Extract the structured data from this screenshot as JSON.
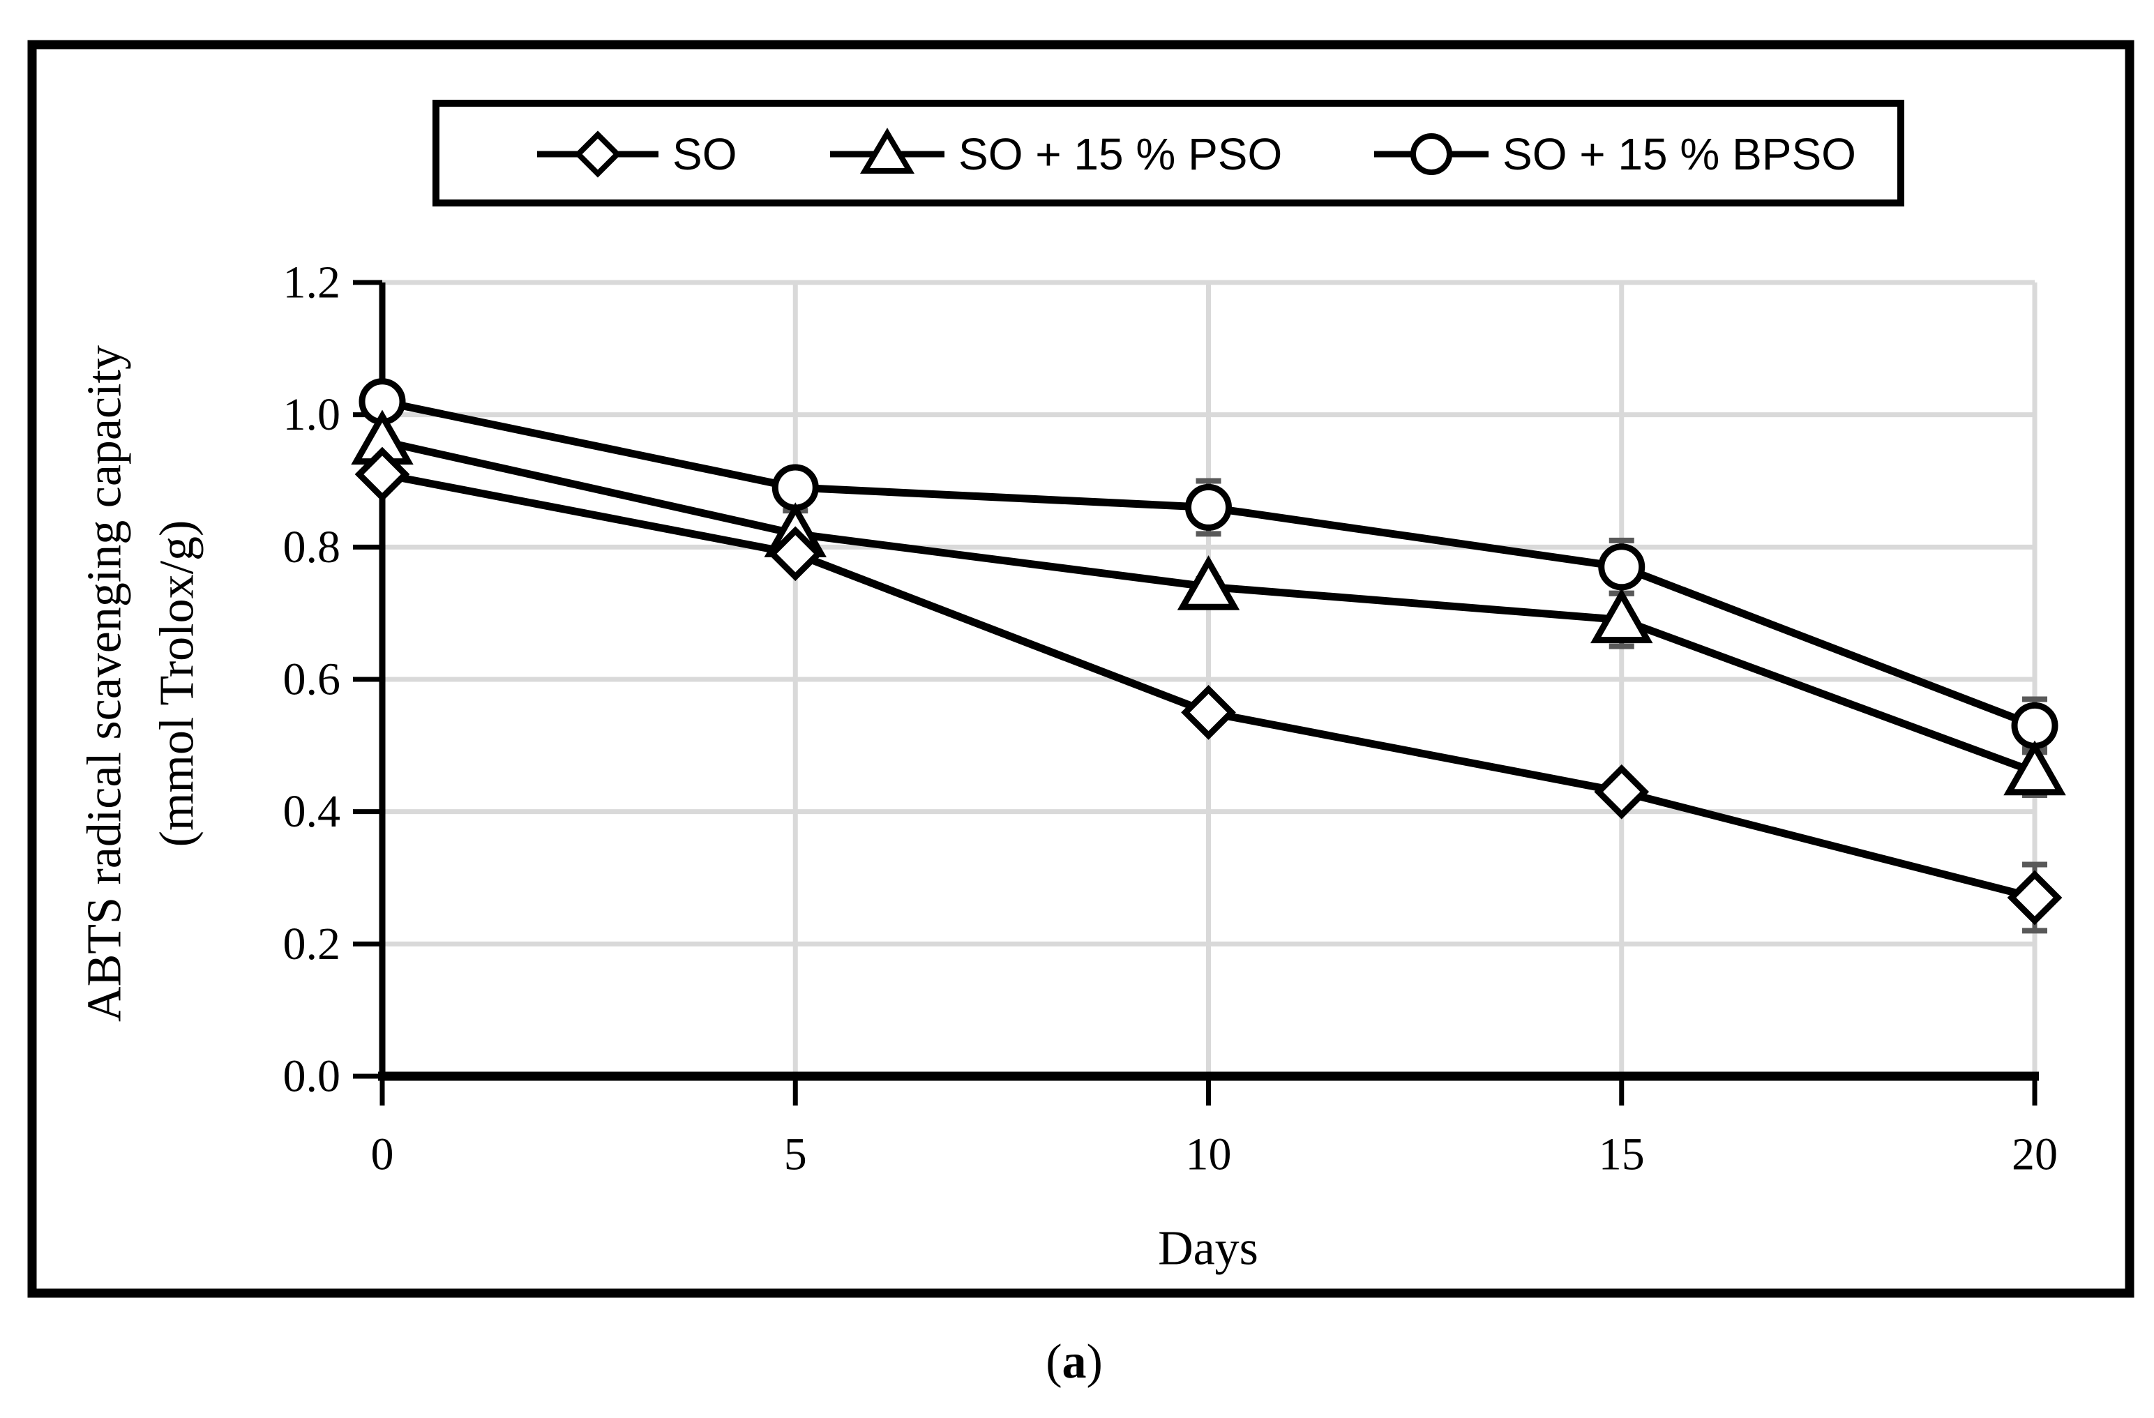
{
  "figure": {
    "caption_open": "(",
    "caption_letter": "a",
    "caption_close": ")"
  },
  "chart_data": {
    "type": "line",
    "title": "",
    "xlabel": "Days",
    "ylabel_line1": "ABTS radical scavenging capacity",
    "ylabel_line2": "(mmol Trolox/g)",
    "x": [
      0,
      5,
      10,
      15,
      20
    ],
    "x_tick_labels": [
      "0",
      "5",
      "10",
      "15",
      "20"
    ],
    "y_tick_labels": [
      "0.0",
      "0.2",
      "0.4",
      "0.6",
      "0.8",
      "1.0",
      "1.2"
    ],
    "xlim": [
      0,
      20
    ],
    "ylim": [
      0,
      1.2
    ],
    "grid": true,
    "legend_position": "top",
    "series": [
      {
        "name": "SO",
        "marker": "diamond",
        "values": [
          0.91,
          0.79,
          0.55,
          0.43,
          0.27
        ],
        "errors": [
          0,
          0,
          0,
          0,
          0.05
        ]
      },
      {
        "name": "SO + 15 % PSO",
        "marker": "triangle",
        "values": [
          0.96,
          0.82,
          0.74,
          0.69,
          0.46
        ],
        "errors": [
          0,
          0.035,
          0.012,
          0.04,
          0.035
        ]
      },
      {
        "name": "SO + 15 % BPSO",
        "marker": "circle",
        "values": [
          1.02,
          0.89,
          0.86,
          0.77,
          0.53
        ],
        "errors": [
          0,
          0,
          0.04,
          0.04,
          0.04
        ]
      }
    ],
    "colors": {
      "line": "#000000",
      "grid": "#d9d9d9",
      "error_bar": "#595959",
      "marker_fill": "#ffffff",
      "background": "#ffffff"
    }
  }
}
